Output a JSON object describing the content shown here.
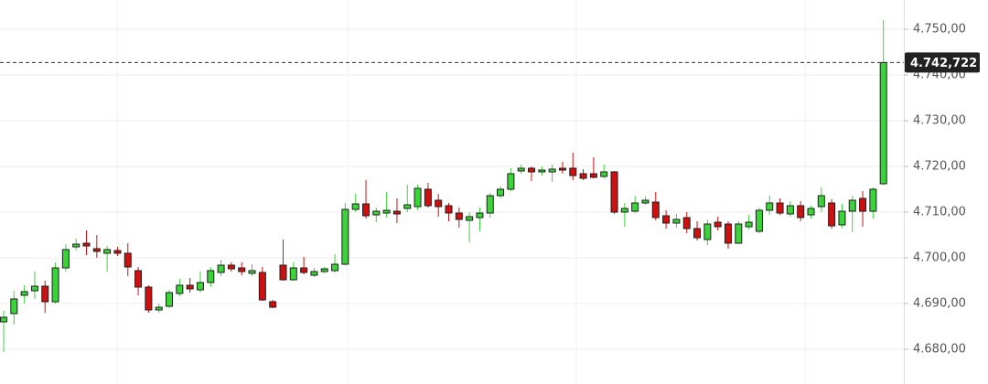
{
  "chart_data": {
    "type": "candlestick",
    "open": [
      4686.0,
      4687.8,
      4691.8,
      4692.8,
      4693.8,
      4690.4,
      4697.8,
      4702.4,
      4703.2,
      4702.0,
      4701.0,
      4701.6,
      4701.0,
      4697.2,
      4693.6,
      4688.6,
      4689.4,
      4692.2,
      4694.0,
      4693.0,
      4694.6,
      4696.8,
      4698.4,
      4697.8,
      4696.6,
      4696.8,
      4690.4,
      4698.4,
      4695.2,
      4697.8,
      4696.2,
      4697.0,
      4697.2,
      4698.6,
      4710.6,
      4711.8,
      4709.4,
      4709.8,
      4710.2,
      4710.8,
      4711.2,
      4715.0,
      4712.6,
      4711.4,
      4709.8,
      4708.2,
      4708.8,
      4709.8,
      4713.6,
      4715.0,
      4719.0,
      4719.6,
      4718.8,
      4718.8,
      4719.6,
      4719.6,
      4718.4,
      4718.4,
      4717.8,
      4718.8,
      4710.0,
      4710.2,
      4712.0,
      4712.2,
      4709.2,
      4707.6,
      4708.8,
      4706.4,
      4704.0,
      4707.8,
      4707.4,
      4703.2,
      4706.8,
      4705.8,
      4710.4,
      4712.0,
      4709.6,
      4711.4,
      4709.4,
      4711.2,
      4712.0,
      4707.2,
      4710.2,
      4713.0,
      4710.2,
      4716.2
    ],
    "high": [
      4688.4,
      4692.8,
      4694.0,
      4697.0,
      4695.0,
      4699.0,
      4703.0,
      4704.2,
      4706.0,
      4705.0,
      4702.6,
      4702.4,
      4703.2,
      4698.0,
      4694.0,
      4690.0,
      4693.0,
      4695.4,
      4695.6,
      4697.0,
      4698.0,
      4699.6,
      4699.0,
      4699.0,
      4698.6,
      4698.0,
      4690.8,
      4704.0,
      4699.0,
      4700.2,
      4697.8,
      4698.0,
      4700.8,
      4712.0,
      4714.0,
      4717.0,
      4711.0,
      4714.4,
      4713.0,
      4716.0,
      4716.0,
      4716.4,
      4714.0,
      4712.0,
      4711.0,
      4710.0,
      4711.0,
      4714.2,
      4715.6,
      4719.6,
      4720.4,
      4720.0,
      4720.0,
      4720.4,
      4721.0,
      4723.0,
      4719.4,
      4722.0,
      4720.4,
      4719.0,
      4712.0,
      4713.6,
      4713.4,
      4714.4,
      4710.4,
      4709.6,
      4710.0,
      4708.0,
      4708.4,
      4709.0,
      4708.0,
      4708.0,
      4709.4,
      4711.0,
      4713.6,
      4713.0,
      4712.4,
      4712.4,
      4711.4,
      4715.4,
      4712.8,
      4711.8,
      4713.6,
      4714.6,
      4715.4,
      4752.0
    ],
    "low": [
      4679.4,
      4685.4,
      4690.0,
      4691.0,
      4688.0,
      4690.0,
      4697.0,
      4701.6,
      4700.6,
      4700.0,
      4697.0,
      4700.4,
      4696.0,
      4691.8,
      4688.0,
      4688.0,
      4689.0,
      4691.6,
      4692.4,
      4692.4,
      4693.6,
      4696.0,
      4697.0,
      4696.2,
      4696.0,
      4690.6,
      4689.0,
      4695.0,
      4695.0,
      4696.4,
      4695.8,
      4696.6,
      4696.8,
      4698.4,
      4710.0,
      4708.6,
      4707.8,
      4708.8,
      4707.6,
      4710.0,
      4710.4,
      4711.0,
      4709.0,
      4708.0,
      4706.6,
      4703.4,
      4705.8,
      4708.8,
      4713.0,
      4714.6,
      4718.4,
      4716.8,
      4718.0,
      4716.6,
      4718.4,
      4717.0,
      4717.0,
      4717.4,
      4717.4,
      4709.6,
      4706.8,
      4709.8,
      4711.6,
      4708.2,
      4706.4,
      4706.6,
      4705.4,
      4703.8,
      4702.8,
      4706.0,
      4702.0,
      4703.0,
      4706.2,
      4705.4,
      4709.4,
      4709.4,
      4709.0,
      4708.0,
      4708.6,
      4710.0,
      4706.4,
      4706.6,
      4705.6,
      4706.8,
      4708.6,
      4716.0
    ],
    "close": [
      4687.0,
      4691.0,
      4692.6,
      4693.8,
      4690.4,
      4697.8,
      4701.8,
      4703.0,
      4702.6,
      4701.4,
      4701.8,
      4701.0,
      4698.0,
      4693.6,
      4688.6,
      4689.2,
      4692.4,
      4694.0,
      4693.2,
      4694.6,
      4697.2,
      4698.4,
      4697.6,
      4697.0,
      4697.2,
      4690.8,
      4689.2,
      4695.2,
      4697.8,
      4696.8,
      4697.0,
      4697.6,
      4698.6,
      4710.6,
      4711.8,
      4709.2,
      4710.2,
      4710.4,
      4709.6,
      4711.6,
      4715.2,
      4711.4,
      4711.2,
      4709.8,
      4708.4,
      4709.0,
      4709.8,
      4713.6,
      4715.0,
      4718.4,
      4719.6,
      4718.8,
      4719.2,
      4719.4,
      4719.2,
      4718.0,
      4717.4,
      4717.6,
      4718.8,
      4710.0,
      4710.8,
      4712.0,
      4712.6,
      4708.8,
      4707.6,
      4708.4,
      4706.4,
      4704.4,
      4707.4,
      4706.8,
      4703.2,
      4707.4,
      4707.8,
      4710.4,
      4712.0,
      4709.8,
      4711.4,
      4708.8,
      4710.8,
      4713.6,
      4707.0,
      4710.2,
      4712.6,
      4710.2,
      4715.0,
      4742.722
    ],
    "up_color": "#3ad43a",
    "down_color": "#d01010",
    "ylim": [
      4672.4,
      4756.4
    ],
    "yticks": [
      {
        "value": 4680,
        "label": "4.680,00"
      },
      {
        "value": 4690,
        "label": "4.690,00"
      },
      {
        "value": 4700,
        "label": "4.700,00"
      },
      {
        "value": 4710,
        "label": "4.710,00"
      },
      {
        "value": 4720,
        "label": "4.720,00"
      },
      {
        "value": 4730,
        "label": "4.730,00"
      },
      {
        "value": 4740,
        "label": "4.740,00"
      },
      {
        "value": 4750,
        "label": "4.750,00"
      }
    ],
    "last_price": {
      "value": 4742.722,
      "label": "4.742,722"
    },
    "grid": true
  }
}
